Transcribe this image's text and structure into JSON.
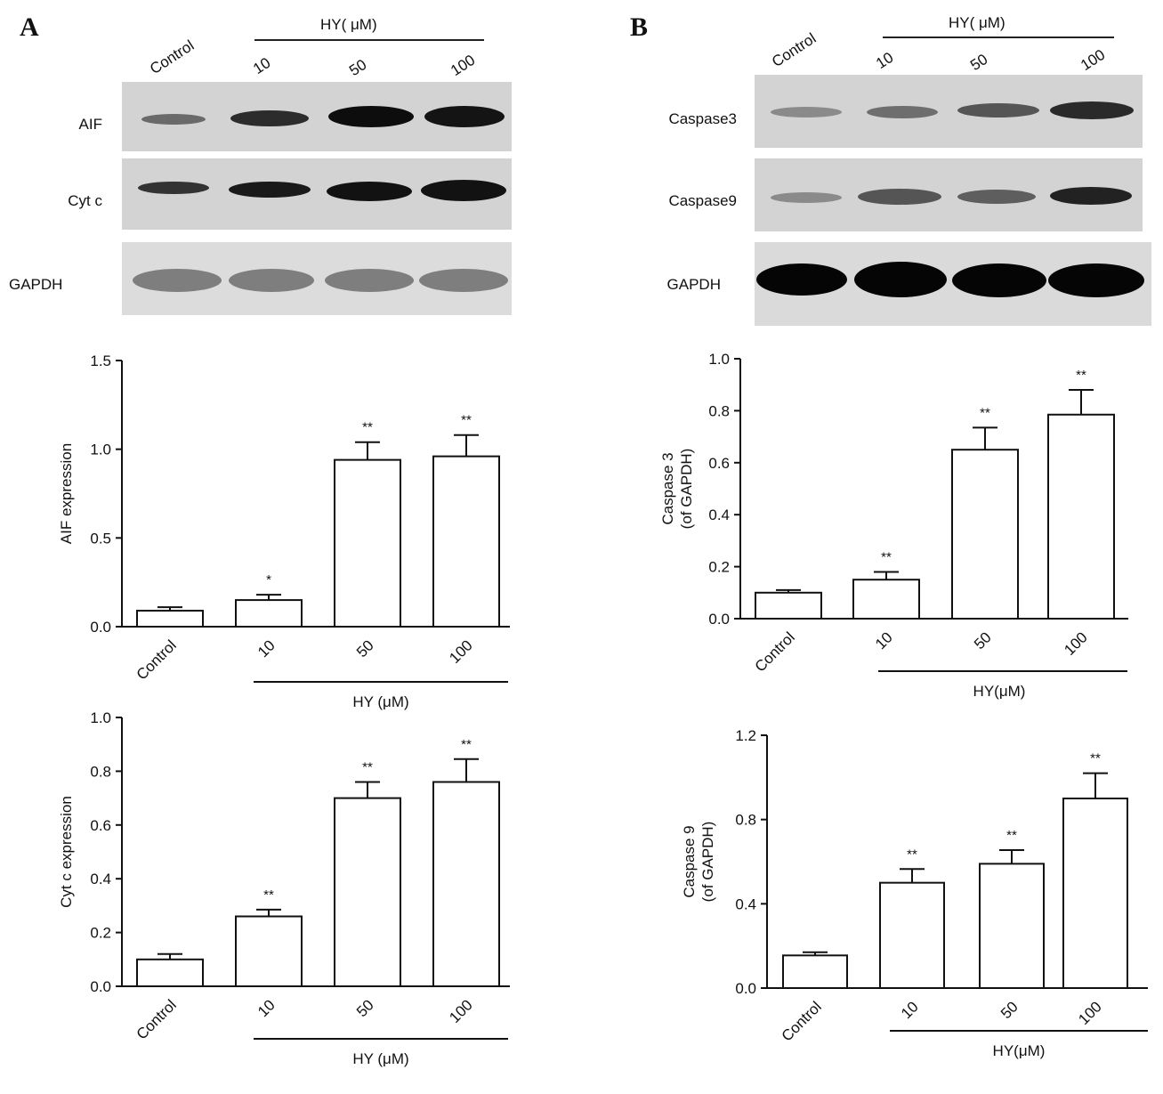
{
  "panels": {
    "a": {
      "letter": "A",
      "blot": {
        "lanes": [
          "Control",
          "10",
          "50",
          "100"
        ],
        "treatment_label": "HY( μM)",
        "rows": [
          "AIF",
          "Cyt c",
          "GAPDH"
        ]
      }
    },
    "b": {
      "letter": "B",
      "blot": {
        "lanes": [
          "Control",
          "10",
          "50",
          "100"
        ],
        "treatment_label": "HY( μM)",
        "rows": [
          "Caspase3",
          "Caspase9",
          "GAPDH"
        ]
      }
    }
  },
  "chart_data": [
    {
      "type": "bar",
      "categories": [
        "Control",
        "10",
        "50",
        "100"
      ],
      "values": [
        0.09,
        0.15,
        0.94,
        0.96
      ],
      "errors": [
        0.02,
        0.03,
        0.1,
        0.12
      ],
      "significance": [
        "",
        "*",
        "**",
        "**"
      ],
      "ylabel": "AIF expression",
      "xlabel": "HY (μM)",
      "ylim": [
        0,
        1.5
      ],
      "yticks": [
        "0.0",
        "0.5",
        "1.0",
        "1.5"
      ],
      "tick_values": [
        0,
        0.5,
        1.0,
        1.5
      ]
    },
    {
      "type": "bar",
      "categories": [
        "Control",
        "10",
        "50",
        "100"
      ],
      "values": [
        0.1,
        0.26,
        0.7,
        0.76
      ],
      "errors": [
        0.02,
        0.025,
        0.06,
        0.085
      ],
      "significance": [
        "",
        "**",
        "**",
        "**"
      ],
      "ylabel": "Cyt c expression",
      "xlabel": "HY (μM)",
      "ylim": [
        0,
        1.0
      ],
      "yticks": [
        "0.0",
        "0.2",
        "0.4",
        "0.6",
        "0.8",
        "1.0"
      ],
      "tick_values": [
        0,
        0.2,
        0.4,
        0.6,
        0.8,
        1.0
      ]
    },
    {
      "type": "bar",
      "categories": [
        "Control",
        "10",
        "50",
        "100"
      ],
      "values": [
        0.1,
        0.15,
        0.65,
        0.785
      ],
      "errors": [
        0.01,
        0.03,
        0.085,
        0.095
      ],
      "significance": [
        "",
        "**",
        "**",
        "**"
      ],
      "ylabel_lines": [
        "Caspase 3",
        "(of GAPDH)"
      ],
      "xlabel": "HY(μM)",
      "ylim": [
        0,
        1.0
      ],
      "yticks": [
        "0.0",
        "0.2",
        "0.4",
        "0.6",
        "0.8",
        "1.0"
      ],
      "tick_values": [
        0,
        0.2,
        0.4,
        0.6,
        0.8,
        1.0
      ]
    },
    {
      "type": "bar",
      "categories": [
        "Control",
        "10",
        "50",
        "100"
      ],
      "values": [
        0.155,
        0.5,
        0.59,
        0.9
      ],
      "errors": [
        0.015,
        0.065,
        0.065,
        0.12
      ],
      "significance": [
        "",
        "**",
        "**",
        "**"
      ],
      "ylabel_lines": [
        "Caspase 9",
        "(of GAPDH)"
      ],
      "xlabel": "HY(μM)",
      "ylim": [
        0,
        1.2
      ],
      "yticks": [
        "0.0",
        "0.4",
        "0.8",
        "1.2"
      ],
      "tick_values": [
        0,
        0.4,
        0.8,
        1.2
      ]
    }
  ]
}
